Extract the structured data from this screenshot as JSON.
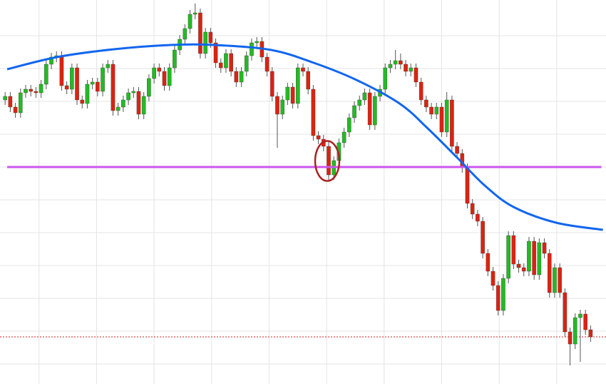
{
  "chart_data": {
    "type": "candlestick",
    "up_color": "#22bb22",
    "down_color": "#dd2211",
    "wick_color": "#555555",
    "grid": true,
    "grid_color": "#e4e4e4",
    "xlim": [
      -1,
      117
    ],
    "ylim": [
      0,
      538
    ],
    "xticks": [
      6.6,
      17.8,
      29,
      40.2,
      51.4,
      62.6,
      73.8,
      85,
      96.2,
      107.4
    ],
    "yticks": [
      28,
      74,
      120,
      166,
      212,
      258,
      304,
      350,
      396,
      442,
      488
    ],
    "open": [
      398,
      403,
      388,
      380,
      408,
      413,
      410,
      408,
      420,
      448,
      458,
      460,
      418,
      413,
      443,
      398,
      393,
      420,
      423,
      410,
      443,
      448,
      383,
      388,
      398,
      408,
      410,
      378,
      403,
      428,
      443,
      438,
      418,
      443,
      468,
      483,
      498,
      518,
      520,
      463,
      493,
      478,
      450,
      443,
      463,
      438,
      423,
      438,
      460,
      478,
      480,
      458,
      438,
      403,
      378,
      398,
      416,
      393,
      443,
      438,
      413,
      348,
      343,
      333,
      293,
      313,
      338,
      353,
      373,
      390,
      398,
      408,
      363,
      403,
      413,
      443,
      448,
      453,
      448,
      438,
      443,
      423,
      398,
      388,
      378,
      388,
      353,
      398,
      333,
      323,
      303,
      253,
      238,
      228,
      183,
      158,
      138,
      103,
      148,
      208,
      168,
      163,
      158,
      200,
      153,
      198,
      183,
      128,
      163,
      128,
      73,
      56,
      93,
      98,
      76
    ],
    "high": [
      409,
      409,
      394,
      414,
      419,
      419,
      416,
      426,
      454,
      464,
      466,
      466,
      424,
      449,
      449,
      404,
      426,
      429,
      429,
      449,
      454,
      454,
      394,
      404,
      414,
      416,
      416,
      409,
      434,
      449,
      449,
      444,
      449,
      474,
      489,
      504,
      524,
      533,
      526,
      499,
      499,
      484,
      456,
      469,
      469,
      444,
      444,
      466,
      484,
      486,
      486,
      464,
      444,
      409,
      404,
      422,
      422,
      449,
      449,
      444,
      419,
      354,
      349,
      339,
      319,
      344,
      359,
      379,
      396,
      404,
      414,
      414,
      409,
      419,
      449,
      454,
      468,
      463,
      454,
      449,
      449,
      429,
      404,
      394,
      394,
      394,
      409,
      404,
      339,
      329,
      309,
      259,
      244,
      234,
      189,
      164,
      144,
      154,
      214,
      214,
      174,
      169,
      206,
      206,
      204,
      204,
      189,
      169,
      169,
      134,
      79,
      99,
      104,
      104,
      82
    ],
    "low": [
      391,
      381,
      373,
      373,
      401,
      403,
      401,
      401,
      413,
      441,
      451,
      411,
      406,
      406,
      391,
      386,
      386,
      413,
      403,
      403,
      436,
      376,
      376,
      381,
      391,
      401,
      371,
      371,
      396,
      421,
      431,
      411,
      411,
      436,
      461,
      476,
      491,
      511,
      456,
      456,
      471,
      443,
      436,
      436,
      431,
      416,
      416,
      431,
      453,
      471,
      451,
      431,
      396,
      331,
      371,
      391,
      386,
      386,
      431,
      406,
      341,
      336,
      326,
      286,
      286,
      306,
      331,
      346,
      366,
      383,
      391,
      356,
      356,
      396,
      406,
      436,
      441,
      441,
      431,
      431,
      416,
      391,
      381,
      371,
      371,
      346,
      346,
      326,
      316,
      296,
      246,
      231,
      221,
      176,
      151,
      131,
      96,
      96,
      141,
      161,
      156,
      151,
      151,
      146,
      146,
      176,
      121,
      121,
      121,
      66,
      26,
      49,
      31,
      69,
      59
    ],
    "close": [
      403,
      388,
      380,
      408,
      413,
      410,
      408,
      420,
      448,
      458,
      460,
      418,
      413,
      443,
      398,
      393,
      420,
      423,
      410,
      443,
      448,
      383,
      388,
      398,
      408,
      410,
      378,
      403,
      428,
      443,
      438,
      418,
      443,
      468,
      483,
      498,
      518,
      520,
      463,
      493,
      478,
      450,
      443,
      463,
      438,
      423,
      438,
      460,
      478,
      480,
      458,
      438,
      403,
      378,
      398,
      416,
      393,
      443,
      438,
      413,
      348,
      343,
      333,
      293,
      313,
      338,
      353,
      373,
      390,
      398,
      408,
      363,
      403,
      413,
      443,
      448,
      453,
      448,
      438,
      443,
      423,
      398,
      388,
      378,
      388,
      353,
      398,
      333,
      323,
      303,
      253,
      238,
      228,
      183,
      158,
      138,
      103,
      148,
      208,
      168,
      163,
      158,
      200,
      153,
      198,
      183,
      128,
      163,
      128,
      73,
      56,
      93,
      98,
      76,
      66
    ],
    "curve": {
      "color": "#1166ee",
      "x": [
        0.4,
        10.1,
        21.2,
        32.3,
        40.7,
        51.8,
        60.1,
        68.4,
        76.8,
        82.3,
        87.9,
        93.4,
        99,
        107.3,
        116.4
      ],
      "values": [
        441,
        458,
        469,
        475,
        475,
        468,
        450,
        426,
        393,
        358,
        318,
        278,
        248,
        226,
        216
      ]
    },
    "level_line": {
      "value": 304,
      "color": "#cc55ee",
      "x": [
        0.4,
        116.1
      ]
    },
    "dotted_line": {
      "value": 66,
      "color": "#cc2222"
    },
    "highlight_index": 63,
    "highlight_color": "#aa2222"
  }
}
